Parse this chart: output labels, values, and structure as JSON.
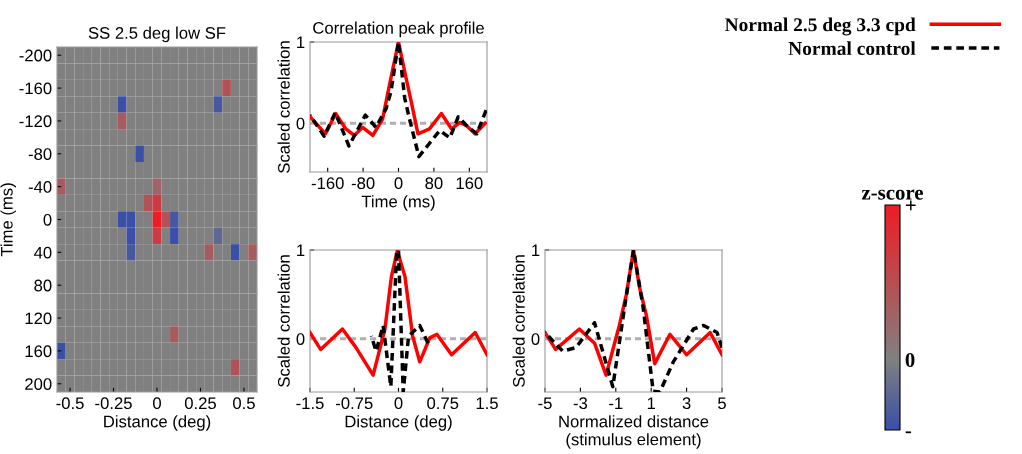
{
  "chart_data": [
    {
      "type": "heatmap",
      "title": "SS 2.5 deg low SF",
      "xlabel": "Distance (deg)",
      "ylabel": "Time (ms)",
      "clabel": "z-score",
      "x": [
        -0.55,
        -0.5,
        -0.45,
        -0.4,
        -0.35,
        -0.3,
        -0.25,
        -0.2,
        -0.15,
        -0.1,
        -0.05,
        0,
        0.05,
        0.1,
        0.15,
        0.2,
        0.25,
        0.3,
        0.35,
        0.4,
        0.45,
        0.5,
        0.55
      ],
      "y": [
        -200,
        -180,
        -160,
        -140,
        -120,
        -100,
        -80,
        -60,
        -40,
        -20,
        0,
        20,
        40,
        60,
        80,
        100,
        120,
        140,
        160,
        180,
        200
      ],
      "cells": [
        [
          0,
          0,
          0,
          0,
          0,
          0,
          0,
          0,
          0,
          0,
          0,
          0,
          0,
          0,
          0,
          0,
          0,
          0,
          0,
          0,
          0,
          0,
          0
        ],
        [
          0,
          0,
          0,
          0,
          0,
          0,
          0,
          0,
          0,
          0,
          0,
          0,
          0,
          0,
          0,
          0,
          0,
          0,
          0,
          0,
          0,
          0,
          0
        ],
        [
          0,
          0,
          0,
          0,
          0,
          0,
          0,
          0,
          0,
          0,
          0,
          0,
          0,
          0,
          0,
          0,
          0,
          0,
          0,
          1.0,
          0,
          0,
          0
        ],
        [
          0,
          0,
          0,
          0,
          0,
          0,
          0,
          -1,
          0,
          0,
          0,
          0,
          0,
          0,
          0,
          0,
          0,
          0,
          -0.8,
          0,
          0,
          0,
          0
        ],
        [
          0,
          0,
          0,
          0,
          0,
          0,
          0,
          0.8,
          0,
          0,
          0,
          0,
          0,
          0,
          0,
          0,
          0,
          0,
          0,
          0,
          0,
          0,
          0
        ],
        [
          0,
          0,
          0,
          0,
          0,
          0,
          0,
          0,
          0,
          0,
          0,
          0,
          0,
          0,
          0,
          0,
          0,
          0,
          0,
          0,
          0,
          0,
          0
        ],
        [
          0,
          0,
          0,
          0,
          0,
          0,
          0,
          0,
          0,
          -1,
          0,
          0,
          0,
          0,
          0,
          0,
          0,
          0,
          0,
          0,
          0,
          0,
          0
        ],
        [
          0,
          0,
          0,
          0,
          0,
          0,
          0,
          0,
          0,
          0,
          0,
          0,
          0,
          0,
          0,
          0,
          0,
          0,
          0,
          0,
          0,
          0,
          0
        ],
        [
          0.8,
          0,
          0,
          0,
          0,
          0,
          0,
          0,
          0,
          0,
          0,
          0.6,
          0,
          0,
          0,
          0,
          0,
          0,
          0,
          0,
          0,
          0,
          0
        ],
        [
          0,
          0,
          0,
          0,
          0,
          0,
          0,
          0,
          0,
          0,
          1.0,
          1.5,
          0,
          0,
          0,
          0,
          0,
          0,
          0,
          0,
          0,
          0,
          0
        ],
        [
          0,
          0,
          0,
          0,
          0,
          0,
          0,
          -1,
          -1,
          0,
          0,
          2.2,
          1.0,
          -0.8,
          0,
          0,
          0,
          0,
          0,
          0,
          0,
          0,
          0
        ],
        [
          0,
          0,
          0,
          0,
          0,
          0,
          0,
          0,
          -1,
          0,
          0,
          1.5,
          0,
          -1,
          0,
          0,
          0,
          0,
          -0.5,
          0,
          0,
          0,
          0
        ],
        [
          0,
          0,
          0,
          0,
          0,
          0,
          0,
          0,
          -0.8,
          0,
          0,
          0,
          0,
          0,
          0,
          0,
          0,
          0.8,
          0,
          0,
          -1,
          0,
          0.8
        ],
        [
          0,
          0,
          0,
          0,
          0,
          0,
          0,
          0,
          0,
          0,
          0,
          0,
          0,
          0,
          0,
          0,
          0,
          0,
          0,
          0,
          0,
          0,
          0
        ],
        [
          0,
          0,
          0,
          0,
          0,
          0,
          0,
          0,
          0,
          0,
          0,
          0,
          0,
          0,
          0,
          0,
          0,
          0,
          0,
          0,
          0,
          0,
          0
        ],
        [
          0,
          0,
          0,
          0,
          0,
          0,
          0,
          0,
          0,
          0,
          0,
          0,
          0,
          0,
          0,
          0,
          0,
          0,
          0,
          0,
          0,
          0,
          0
        ],
        [
          0,
          0,
          0,
          0,
          0,
          0,
          0,
          0,
          0,
          0,
          0,
          0,
          0,
          0,
          0,
          0,
          0,
          0,
          0,
          0,
          0,
          0,
          0
        ],
        [
          0,
          0,
          0,
          0,
          0,
          0,
          0,
          0,
          0,
          0,
          0,
          0,
          0,
          0.8,
          0,
          0,
          0,
          0,
          0,
          0,
          0,
          0,
          0
        ],
        [
          -1,
          0,
          0,
          0,
          0,
          0,
          0,
          0,
          0,
          0,
          0,
          0,
          0,
          0,
          0,
          0,
          0,
          0,
          0,
          0,
          0,
          0,
          0
        ],
        [
          0,
          0,
          0,
          0,
          0,
          0,
          0,
          0,
          0,
          0,
          0,
          0,
          0,
          0,
          0,
          0,
          0,
          0,
          0,
          0,
          1.0,
          0,
          0
        ],
        [
          0,
          0,
          0,
          0,
          0,
          0,
          0,
          0,
          0,
          0,
          0,
          0,
          0,
          0,
          0,
          0,
          0,
          0,
          0,
          0,
          0,
          0,
          0
        ]
      ],
      "xlim": [
        -0.575,
        0.575
      ],
      "ylim": [
        210,
        -210
      ],
      "xticks": [
        -0.5,
        -0.25,
        0,
        0.25,
        0.5
      ],
      "yticks": [
        -200,
        -160,
        -120,
        -80,
        -40,
        0,
        40,
        80,
        120,
        160,
        200
      ],
      "clim": [
        -1,
        2.2
      ],
      "cticks": [
        {
          "value": -1,
          "label": "-"
        },
        {
          "value": 0,
          "label": "0"
        },
        {
          "value": 2.2,
          "label": "+"
        }
      ]
    },
    {
      "type": "line",
      "title": "Correlation peak profile",
      "xlabel": "Time (ms)",
      "ylabel": "Scaled correlation",
      "legend": "top right",
      "xlim": [
        -200,
        200
      ],
      "ylim": [
        -0.6,
        1
      ],
      "xticks": [
        -160,
        -80,
        0,
        80,
        160
      ],
      "yticks": [
        0,
        1
      ],
      "ref_lines": [
        {
          "axis": "y",
          "value": 0,
          "color": "#b0b0b0",
          "line_style": "dashed"
        }
      ],
      "series": [
        {
          "name": "Normal 2.5 deg 3.3 cpd",
          "color": "#ff0000",
          "line_style": "solid",
          "x": [
            -200,
            -165,
            -142,
            -119,
            -100,
            -81,
            -58,
            -36,
            -20.5,
            0,
            17,
            29,
            44,
            70,
            97,
            120,
            139,
            154,
            173,
            196
          ],
          "values": [
            0.08,
            -0.13,
            0.12,
            -0.07,
            -0.15,
            -0.05,
            -0.15,
            0.05,
            0.47,
            1.0,
            0.56,
            0.26,
            -0.13,
            -0.07,
            0.12,
            -0.07,
            0.01,
            -0.03,
            -0.13,
            0.0
          ]
        },
        {
          "name": "Normal control",
          "color": "#000000",
          "line_style": "dashed",
          "x": [
            -200,
            -168,
            -143,
            -112,
            -75,
            -51,
            -28,
            -17,
            0,
            14,
            25,
            46,
            71,
            93,
            116,
            135,
            154,
            177,
            198
          ],
          "values": [
            0.1,
            -0.16,
            0.13,
            -0.28,
            0.1,
            -0.05,
            0.18,
            0.39,
            1.0,
            0.31,
            0.05,
            -0.41,
            -0.24,
            -0.09,
            -0.18,
            0.08,
            -0.03,
            -0.13,
            0.16
          ]
        }
      ]
    },
    {
      "type": "line",
      "xlabel": "Distance (deg)",
      "ylabel": "Scaled correlation",
      "xlim": [
        -1.5,
        1.5
      ],
      "ylim": [
        -0.6,
        1
      ],
      "xticks": [
        -1.5,
        -0.75,
        0,
        0.75,
        1.5
      ],
      "yticks": [
        0,
        1
      ],
      "ref_lines": [
        {
          "axis": "y",
          "value": 0,
          "color": "#b0b0b0",
          "line_style": "dashed"
        }
      ],
      "series": [
        {
          "color": "#ff0000",
          "line_style": "solid",
          "x": [
            -1.5,
            -1.32,
            -0.95,
            -0.72,
            -0.43,
            -0.23,
            -0.12,
            -0.02,
            0.11,
            0.24,
            0.36,
            0.53,
            0.65,
            0.9,
            1.3,
            1.5
          ],
          "values": [
            0.07,
            -0.12,
            0.11,
            -0.1,
            -0.41,
            0.11,
            0.7,
            0.99,
            0.7,
            0.03,
            -0.26,
            0.01,
            0.05,
            -0.18,
            0.07,
            -0.18
          ]
        },
        {
          "color": "#000000",
          "line_style": "dashed",
          "x": [
            -0.46,
            -0.38,
            -0.26,
            -0.13,
            -0.03,
            0,
            0.08,
            0.17,
            0.36,
            0.5
          ],
          "values": [
            0.03,
            -0.14,
            0.15,
            -0.54,
            0.99,
            1.0,
            -0.6,
            0.03,
            0.15,
            -0.05
          ]
        }
      ]
    },
    {
      "type": "line",
      "xlabel": "Normalized distance\n(stimulus element)",
      "ylabel": "Scaled correlation",
      "xlim": [
        -5,
        5
      ],
      "ylim": [
        -0.6,
        1
      ],
      "xticks": [
        -5,
        -3,
        -1,
        1,
        3,
        5
      ],
      "yticks": [
        0,
        1
      ],
      "ref_lines": [
        {
          "axis": "y",
          "value": 0,
          "color": "#b0b0b0",
          "line_style": "dashed"
        }
      ],
      "series": [
        {
          "color": "#ff0000",
          "line_style": "solid",
          "x": [
            -5,
            -4.4,
            -3.06,
            -2.2,
            -1.55,
            -0.8,
            -0.4,
            0,
            0.35,
            0.73,
            1.2,
            2.06,
            3.0,
            4.33,
            5
          ],
          "values": [
            0.07,
            -0.12,
            0.11,
            -0.05,
            -0.41,
            0.15,
            0.5,
            1.0,
            0.57,
            0.26,
            -0.28,
            0.05,
            -0.18,
            0.07,
            -0.18
          ]
        },
        {
          "color": "#000000",
          "line_style": "dashed",
          "x": [
            -5,
            -4.0,
            -3.25,
            -2.2,
            -1.17,
            -0.5,
            0,
            0.54,
            1.11,
            1.49,
            2.25,
            3.39,
            3.96,
            4.72,
            5
          ],
          "values": [
            0.07,
            -0.14,
            -0.1,
            0.18,
            -0.54,
            0.36,
            1.0,
            0.36,
            -0.59,
            -0.6,
            -0.26,
            0.11,
            0.15,
            0.07,
            -0.1
          ]
        }
      ]
    }
  ]
}
